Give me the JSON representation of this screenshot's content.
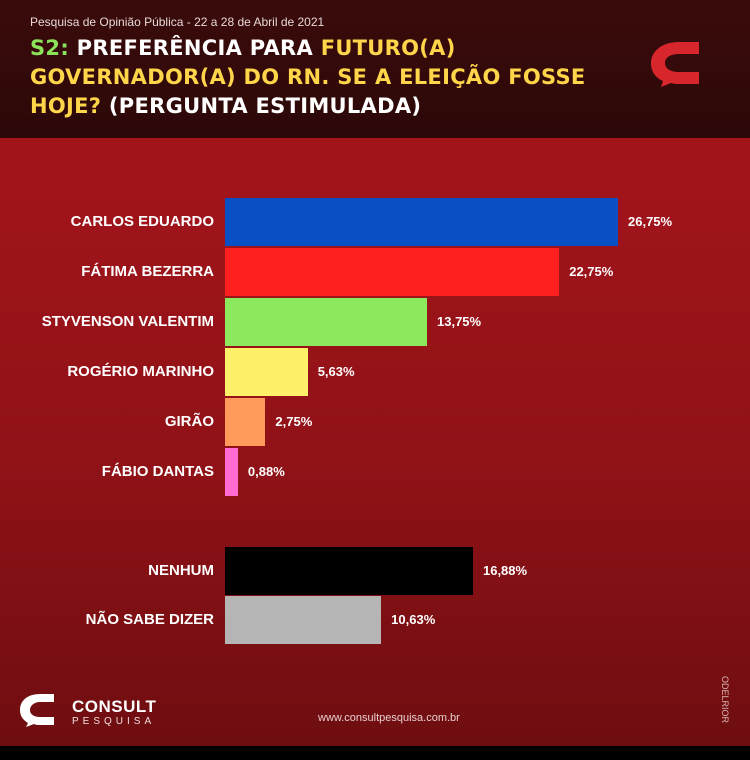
{
  "header": {
    "subtitle": "Pesquisa de Opinião Pública - 22 a 28 de Abril de 2021",
    "title_prefix": "S2:",
    "title_part1": " PREFERÊNCIA PARA ",
    "title_highlight": "FUTURO(A) GOVERNADOR(A) DO RN. SE A ELEIÇÃO FOSSE HOJE?",
    "title_part2": " (PERGUNTA ESTIMULADA)",
    "brand_icon": "consult-speech-c-icon"
  },
  "chart_data": {
    "type": "bar",
    "orientation": "horizontal",
    "categories": [
      "CARLOS EDUARDO",
      "FÁTIMA BEZERRA",
      "STYVENSON VALENTIM",
      "ROGÉRIO MARINHO",
      "GIRÃO",
      "FÁBIO DANTAS",
      "NENHUM",
      "NÃO SABE DIZER"
    ],
    "values": [
      26.75,
      22.75,
      13.75,
      5.63,
      2.75,
      0.88,
      16.88,
      10.63
    ],
    "value_labels": [
      "26,75%",
      "22,75%",
      "13,75%",
      "5,63%",
      "2,75%",
      "0,88%",
      "16,88%",
      "10,63%"
    ],
    "colors": [
      "#0a4fc4",
      "#ff1f1f",
      "#8ce85c",
      "#fff06a",
      "#ff9a5a",
      "#ff6bd0",
      "#000000",
      "#b5b5b5"
    ],
    "title": "",
    "xlabel": "",
    "ylabel": "",
    "grid": false,
    "legend": "none"
  },
  "footer": {
    "brand": "CONSULT",
    "brand_sub": "PESQUISA",
    "url": "www.consultpesquisa.com.br",
    "side_credit": "ODELRIOR"
  }
}
